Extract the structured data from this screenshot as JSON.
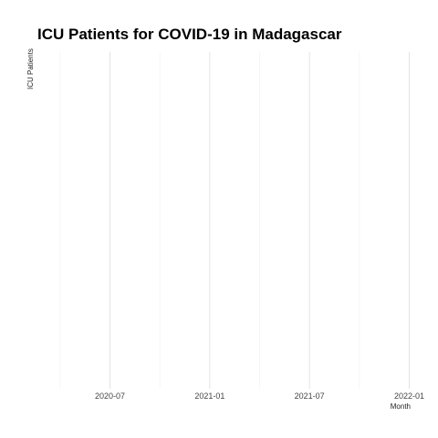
{
  "chart_data": {
    "type": "line",
    "title": "ICU Patients for COVID-19 in Madagascar",
    "xlabel": "Month",
    "ylabel": "ICU Patients",
    "x_ticks": [
      "2020-07",
      "2021-01",
      "2021-07",
      "2022-01"
    ],
    "xlim": [
      "2020-04",
      "2022-01"
    ],
    "series": [],
    "grid": "vertical",
    "legend": "none"
  }
}
